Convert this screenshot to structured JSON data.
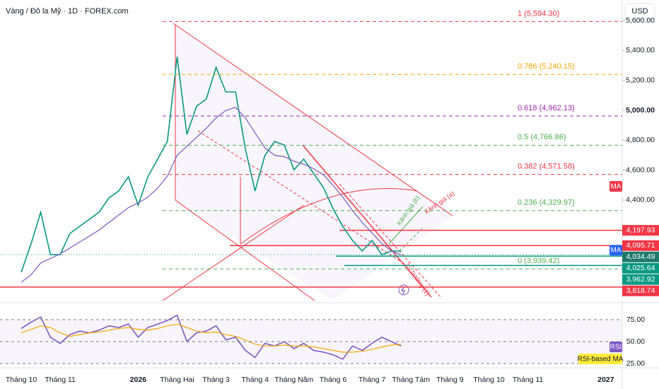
{
  "chart_data": {
    "type": "line",
    "title": "Vàng / Đô la Mỹ · 1D · FOREX.com",
    "currency": "USD",
    "categories": [
      "Tháng 10",
      null,
      null,
      null,
      "Tháng 11",
      null,
      null,
      null,
      null,
      null,
      null,
      null,
      "2026",
      null,
      null,
      null,
      "Tháng Hai",
      null,
      null,
      null,
      "Tháng 3",
      null,
      null,
      null,
      "Tháng 4",
      null,
      null,
      null,
      "Tháng Năm",
      null,
      null,
      null,
      "Tháng 6",
      null,
      null,
      null,
      "Tháng 7",
      null,
      null,
      null,
      "Tháng Tám",
      null,
      null,
      null,
      "Tháng 9",
      null,
      null,
      null,
      "Tháng 10",
      null,
      null,
      null,
      "Tháng 11",
      null,
      null,
      null,
      null,
      null,
      null,
      null,
      "2027"
    ],
    "series": [
      {
        "color": "#089981",
        "values": [
          3917,
          4106,
          4319,
          4035,
          4035,
          4177,
          4225,
          4272,
          4319,
          4414,
          4461,
          4556,
          4366,
          4556,
          4674,
          4792,
          5359,
          4839,
          5028,
          5076,
          5288,
          5123,
          5123,
          4745,
          4461,
          4697,
          4792,
          4768,
          4603,
          4674,
          4579,
          4485,
          4343,
          4225,
          4130,
          4059,
          4130,
          4035,
          4059,
          4059,
          null,
          null,
          null,
          null,
          null,
          null,
          null,
          null,
          null,
          null,
          null,
          null,
          null,
          null,
          null,
          null,
          null,
          null,
          null,
          null,
          null
        ]
      },
      {
        "name": "MA",
        "color": "#7e57c2",
        "values": [
          3850,
          3900,
          3980,
          4010,
          4040,
          4080,
          4120,
          4160,
          4200,
          4250,
          4300,
          4350,
          4380,
          4420,
          4480,
          4560,
          4700,
          4760,
          4820,
          4880,
          4950,
          5000,
          5020,
          4950,
          4850,
          4750,
          4700,
          4690,
          4660,
          4640,
          4610,
          4570,
          4500,
          4420,
          4330,
          4250,
          4180,
          4110,
          4060,
          4034.49,
          null,
          null,
          null,
          null,
          null,
          null,
          null,
          null,
          null,
          null,
          null,
          null,
          null,
          null,
          null,
          null,
          null,
          null,
          null,
          null,
          null
        ]
      }
    ],
    "ylim": [
      3728,
      5738
    ],
    "yticks": [
      {
        "value": 5600,
        "label": "5,600.00"
      },
      {
        "value": 5400,
        "label": "5,400.00"
      },
      {
        "value": 5200,
        "label": "5,200.00"
      },
      {
        "value": 5000,
        "label": "5,000.00"
      },
      {
        "value": 4800,
        "label": "4,800.00"
      },
      {
        "value": 4600,
        "label": "4,600.00"
      },
      {
        "value": 4400,
        "label": "4,400.00"
      }
    ],
    "fib_levels": [
      {
        "value": 5594.3,
        "label": "1 (5,594.30)",
        "color": "#f23645"
      },
      {
        "value": 5240.15,
        "label": "0.786 (5,240.15)",
        "color": "#f7a600"
      },
      {
        "value": 4962.13,
        "label": "0.618 (4,962.13)",
        "color": "#9c27b0"
      },
      {
        "value": 4766.86,
        "label": "0.5 (4,766.86)",
        "color": "#4caf50"
      },
      {
        "value": 4571.58,
        "label": "0.382 (4,571.58)",
        "color": "#f23645"
      },
      {
        "value": 4329.97,
        "label": "0.236 (4,329.97)",
        "color": "#4caf50"
      },
      {
        "value": 3939.42,
        "label": "0 (3,939.42)",
        "color": "#4caf50"
      }
    ],
    "second_ma_label": "MA",
    "price_tags": [
      {
        "value": 4197.93,
        "label": "4,197.93",
        "color": "#f23645"
      },
      {
        "value": 4095.71,
        "label": "4,095.71",
        "color": "#f23645"
      },
      {
        "value": 4034.49,
        "label": "4,034.49",
        "color": "#1e7a6b"
      },
      {
        "value": 4025.64,
        "label": "4,025.64",
        "color": "#089981"
      },
      {
        "value": 3962.92,
        "label": "3,962.92",
        "color": "#089981"
      },
      {
        "value": 3818.74,
        "label": "3,818.74",
        "color": "#f23645"
      }
    ],
    "annotations": [
      "Kênh giá (a)",
      "Kênh giá (b)",
      "Xu hướng (1)"
    ],
    "rsi": {
      "type": "line",
      "ylim": [
        20.2,
        92.7
      ],
      "yticks": [
        {
          "value": 75,
          "label": "75.00"
        },
        {
          "value": 50,
          "label": "50.00"
        },
        {
          "value": 25,
          "label": "25.00"
        }
      ],
      "series": [
        {
          "name": "RSI",
          "color": "#7e57c2",
          "values": [
            65,
            72,
            78,
            55,
            48,
            58,
            62,
            60,
            63,
            68,
            66,
            70,
            55,
            66,
            70,
            74,
            80,
            50,
            60,
            62,
            68,
            52,
            55,
            40,
            32,
            48,
            45,
            50,
            42,
            48,
            40,
            38,
            35,
            30,
            45,
            40,
            48,
            55,
            50,
            45,
            null,
            null,
            null,
            null,
            null,
            null,
            null,
            null,
            null,
            null,
            null,
            null,
            null,
            null,
            null,
            null,
            null,
            null,
            null,
            null,
            null
          ]
        },
        {
          "name": "RSI-based MA",
          "color": "#f7a600",
          "values": [
            60,
            64,
            68,
            66,
            60,
            56,
            58,
            60,
            61,
            63,
            65,
            66,
            64,
            63,
            65,
            68,
            70,
            66,
            62,
            60,
            61,
            58,
            56,
            52,
            47,
            45,
            45,
            46,
            45,
            45,
            44,
            42,
            40,
            38,
            38,
            39,
            41,
            44,
            46,
            47,
            null,
            null,
            null,
            null,
            null,
            null,
            null,
            null,
            null,
            null,
            null,
            null,
            null,
            null,
            null,
            null,
            null,
            null,
            null,
            null,
            null
          ]
        }
      ]
    }
  }
}
